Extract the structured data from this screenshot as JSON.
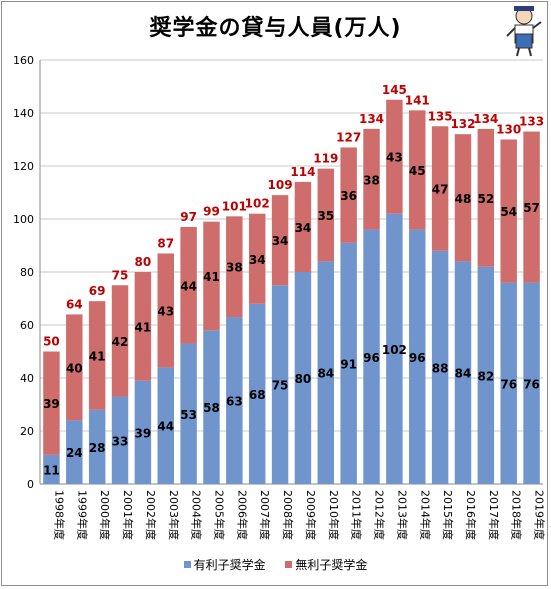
{
  "chart_data": {
    "type": "bar",
    "stacked": true,
    "title": "奨学金の貸与人員(万人)",
    "categories": [
      "1998年度",
      "1999年度",
      "2000年度",
      "2001年度",
      "2002年度",
      "2003年度",
      "2004年度",
      "2005年度",
      "2006年度",
      "2007年度",
      "2008年度",
      "2009年度",
      "2010年度",
      "2011年度",
      "2012年度",
      "2013年度",
      "2014年度",
      "2015年度",
      "2016年度",
      "2017年度",
      "2018年度",
      "2019年度"
    ],
    "series": [
      {
        "name": "有利子奨学金",
        "color": "#6f95cc",
        "values": [
          11,
          24,
          28,
          33,
          39,
          44,
          53,
          58,
          63,
          68,
          75,
          80,
          84,
          91,
          96,
          102,
          96,
          88,
          84,
          82,
          76,
          76
        ]
      },
      {
        "name": "無利子奨学金",
        "color": "#cf6d6d",
        "values": [
          39,
          40,
          41,
          42,
          41,
          43,
          44,
          41,
          38,
          34,
          34,
          34,
          35,
          36,
          38,
          43,
          45,
          47,
          48,
          52,
          54,
          57
        ]
      }
    ],
    "totals": [
      50,
      64,
      69,
      75,
      80,
      87,
      97,
      99,
      101,
      102,
      109,
      114,
      119,
      127,
      134,
      145,
      141,
      135,
      132,
      134,
      130,
      133
    ],
    "total_label_color": "#c00000",
    "ylim": [
      0,
      160
    ],
    "yticks": [
      0,
      20,
      40,
      60,
      80,
      100,
      120,
      140,
      160
    ],
    "grid": true,
    "legend": "bottom"
  }
}
